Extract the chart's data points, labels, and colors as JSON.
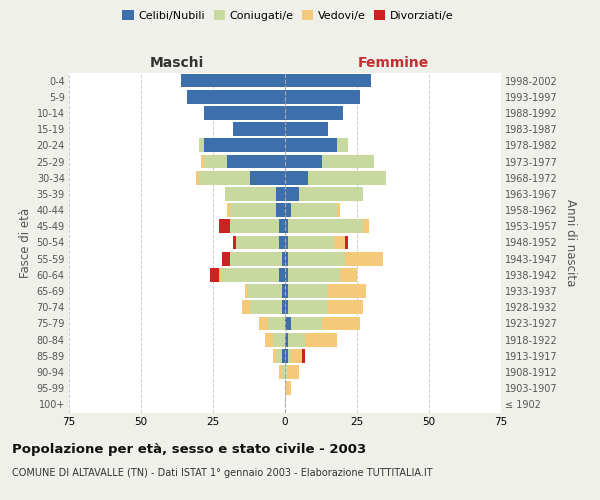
{
  "age_groups": [
    "100+",
    "95-99",
    "90-94",
    "85-89",
    "80-84",
    "75-79",
    "70-74",
    "65-69",
    "60-64",
    "55-59",
    "50-54",
    "45-49",
    "40-44",
    "35-39",
    "30-34",
    "25-29",
    "20-24",
    "15-19",
    "10-14",
    "5-9",
    "0-4"
  ],
  "birth_years": [
    "≤ 1902",
    "1903-1907",
    "1908-1912",
    "1913-1917",
    "1918-1922",
    "1923-1927",
    "1928-1932",
    "1933-1937",
    "1938-1942",
    "1943-1947",
    "1948-1952",
    "1953-1957",
    "1958-1962",
    "1963-1967",
    "1968-1972",
    "1973-1977",
    "1978-1982",
    "1983-1987",
    "1988-1992",
    "1993-1997",
    "1998-2002"
  ],
  "male_celibe": [
    0,
    0,
    0,
    1,
    0,
    0,
    1,
    1,
    2,
    1,
    2,
    2,
    3,
    3,
    12,
    20,
    28,
    18,
    28,
    34,
    36
  ],
  "male_coniugato": [
    0,
    0,
    1,
    2,
    4,
    6,
    11,
    12,
    20,
    18,
    15,
    17,
    16,
    18,
    18,
    8,
    2,
    0,
    0,
    0,
    0
  ],
  "male_vedovo": [
    0,
    0,
    1,
    1,
    3,
    3,
    3,
    1,
    1,
    0,
    0,
    0,
    1,
    0,
    1,
    1,
    0,
    0,
    0,
    0,
    0
  ],
  "male_divorziato": [
    0,
    0,
    0,
    0,
    0,
    0,
    0,
    0,
    3,
    3,
    1,
    4,
    0,
    0,
    0,
    0,
    0,
    0,
    0,
    0,
    0
  ],
  "female_celibe": [
    0,
    0,
    0,
    1,
    1,
    2,
    1,
    1,
    1,
    1,
    1,
    1,
    2,
    5,
    8,
    13,
    18,
    15,
    20,
    26,
    30
  ],
  "female_coniugato": [
    0,
    0,
    1,
    1,
    6,
    11,
    14,
    14,
    18,
    20,
    16,
    26,
    16,
    22,
    27,
    18,
    4,
    0,
    0,
    0,
    0
  ],
  "female_vedovo": [
    0,
    2,
    4,
    4,
    11,
    13,
    12,
    13,
    6,
    13,
    4,
    2,
    1,
    0,
    0,
    0,
    0,
    0,
    0,
    0,
    0
  ],
  "female_divorziata": [
    0,
    0,
    0,
    1,
    0,
    0,
    0,
    0,
    0,
    0,
    1,
    0,
    0,
    0,
    0,
    0,
    0,
    0,
    0,
    0,
    0
  ],
  "colors": {
    "celibe": "#3d6fad",
    "coniugato": "#c8d9a0",
    "vedovo": "#f5c97a",
    "divorziato": "#cc2222"
  },
  "xlim": 75,
  "title": "Popolazione per età, sesso e stato civile - 2003",
  "subtitle": "COMUNE DI ALTAVALLE (TN) - Dati ISTAT 1° gennaio 2003 - Elaborazione TUTTITALIA.IT",
  "ylabel_left": "Fasce di età",
  "ylabel_right": "Anni di nascita",
  "xlabel_left": "Maschi",
  "xlabel_right": "Femmine",
  "legend_labels": [
    "Celibi/Nubili",
    "Coniugati/e",
    "Vedovi/e",
    "Divorziati/e"
  ],
  "bg_color": "#f0f0eb",
  "plot_bg": "#ffffff"
}
